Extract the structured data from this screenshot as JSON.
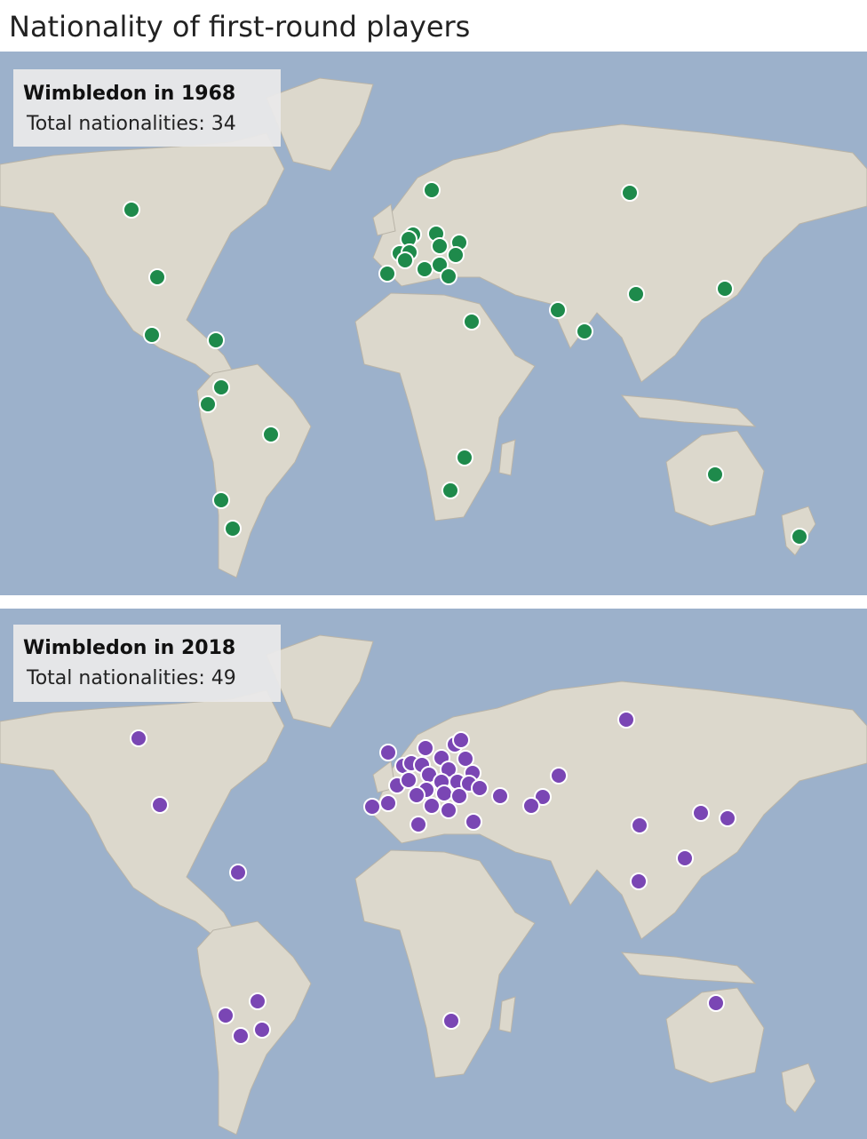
{
  "header": {
    "title": "Nationality of first-round players"
  },
  "panels": [
    {
      "heading": "Wimbledon in 1968",
      "total": "Total nationalities: 34",
      "color": "#1e8a4b"
    },
    {
      "heading": "Wimbledon in 2018",
      "total": "Total nationalities: 49",
      "color": "#7a46b4"
    }
  ]
}
